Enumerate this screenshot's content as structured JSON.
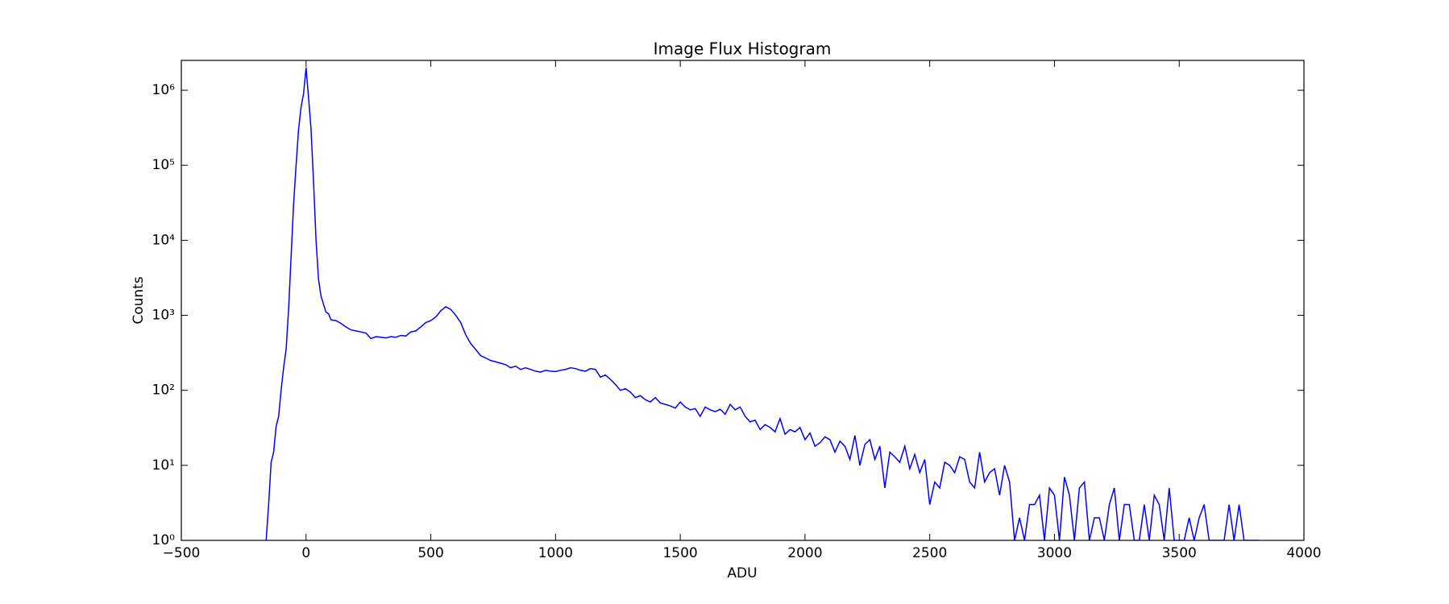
{
  "chart_data": {
    "type": "line",
    "title": "Image Flux Histogram",
    "x_label": "ADU",
    "y_label": "Counts",
    "log_y": true,
    "color": "#0000ff",
    "xlim": [
      -500,
      4000
    ],
    "xticks": [
      {
        "value": -500,
        "label": "−500"
      },
      0,
      500,
      1000,
      1500,
      2000,
      2500,
      3000,
      3500,
      4000
    ],
    "ylim": [
      1,
      2500000
    ],
    "yticks": [
      {
        "value": 1,
        "label": "10⁰"
      },
      {
        "value": 10,
        "label": "10¹"
      },
      {
        "value": 100,
        "label": "10²"
      },
      {
        "value": 1000,
        "label": "10³"
      },
      {
        "value": 10000,
        "label": "10⁴"
      },
      {
        "value": 100000,
        "label": "10⁵"
      },
      {
        "value": 1000000,
        "label": "10⁶"
      }
    ],
    "x": [
      -160,
      -150,
      -140,
      -130,
      -120,
      -110,
      -100,
      -90,
      -80,
      -70,
      -60,
      -50,
      -40,
      -30,
      -20,
      -10,
      0,
      10,
      20,
      30,
      40,
      50,
      60,
      70,
      80,
      90,
      100,
      120,
      140,
      160,
      180,
      200,
      220,
      240,
      260,
      280,
      300,
      320,
      340,
      360,
      380,
      400,
      420,
      440,
      460,
      480,
      500,
      520,
      540,
      560,
      580,
      600,
      620,
      640,
      660,
      680,
      700,
      720,
      740,
      760,
      780,
      800,
      820,
      840,
      860,
      880,
      900,
      920,
      940,
      960,
      980,
      1000,
      1020,
      1040,
      1060,
      1080,
      1100,
      1120,
      1140,
      1160,
      1180,
      1200,
      1220,
      1240,
      1260,
      1280,
      1300,
      1320,
      1340,
      1360,
      1380,
      1400,
      1420,
      1440,
      1460,
      1480,
      1500,
      1520,
      1540,
      1560,
      1580,
      1600,
      1620,
      1640,
      1660,
      1680,
      1700,
      1720,
      1740,
      1760,
      1780,
      1800,
      1820,
      1840,
      1860,
      1880,
      1900,
      1920,
      1940,
      1960,
      1980,
      2000,
      2020,
      2040,
      2060,
      2080,
      2100,
      2120,
      2140,
      2160,
      2180,
      2200,
      2220,
      2240,
      2260,
      2280,
      2300,
      2320,
      2340,
      2360,
      2380,
      2400,
      2420,
      2440,
      2460,
      2480,
      2500,
      2520,
      2540,
      2560,
      2580,
      2600,
      2620,
      2640,
      2660,
      2680,
      2700,
      2720,
      2740,
      2760,
      2780,
      2800,
      2820,
      2840,
      2860,
      2880,
      2900,
      2920,
      2940,
      2960,
      2980,
      3000,
      3020,
      3040,
      3060,
      3080,
      3100,
      3120,
      3140,
      3160,
      3180,
      3200,
      3220,
      3240,
      3260,
      3280,
      3300,
      3320,
      3340,
      3360,
      3380,
      3400,
      3420,
      3440,
      3460,
      3480,
      3500,
      3520,
      3540,
      3560,
      3580,
      3600,
      3620,
      3640,
      3660,
      3680,
      3700,
      3720,
      3740,
      3760,
      3780,
      3800,
      3820
    ],
    "values": [
      1,
      3,
      11,
      15,
      33,
      45,
      100,
      200,
      350,
      1200,
      6000,
      30000,
      100000,
      300000,
      600000,
      900000,
      2000000,
      800000,
      300000,
      60000,
      10000,
      3000,
      1800,
      1400,
      1100,
      1050,
      870,
      850,
      780,
      700,
      640,
      620,
      600,
      580,
      490,
      520,
      510,
      500,
      520,
      510,
      540,
      530,
      600,
      620,
      700,
      800,
      850,
      950,
      1150,
      1300,
      1200,
      1000,
      800,
      550,
      420,
      350,
      290,
      270,
      250,
      240,
      230,
      220,
      200,
      210,
      190,
      200,
      190,
      180,
      175,
      185,
      180,
      178,
      185,
      190,
      200,
      195,
      185,
      180,
      195,
      190,
      150,
      160,
      140,
      120,
      100,
      105,
      95,
      80,
      85,
      75,
      70,
      80,
      68,
      65,
      62,
      58,
      70,
      60,
      55,
      57,
      45,
      60,
      55,
      52,
      56,
      48,
      65,
      55,
      60,
      45,
      38,
      40,
      30,
      35,
      32,
      28,
      42,
      26,
      30,
      28,
      32,
      22,
      27,
      18,
      20,
      24,
      22,
      15,
      21,
      18,
      12,
      25,
      10,
      19,
      22,
      12,
      18,
      5,
      15,
      13,
      11,
      18,
      9,
      14,
      8,
      12,
      3,
      6,
      5,
      11,
      10,
      8,
      13,
      12,
      6,
      5,
      15,
      6,
      8,
      9,
      4,
      10,
      6,
      1,
      2,
      1,
      3,
      3,
      4,
      1,
      5,
      4,
      1,
      7,
      4,
      1,
      5,
      6,
      1,
      2,
      2,
      1,
      3,
      5,
      1,
      3,
      3,
      1,
      1,
      3,
      1,
      4,
      3,
      1,
      5,
      1,
      1,
      1,
      2,
      1,
      2,
      3,
      1,
      1,
      1,
      1,
      3,
      1,
      3,
      1,
      1,
      1,
      1
    ]
  }
}
